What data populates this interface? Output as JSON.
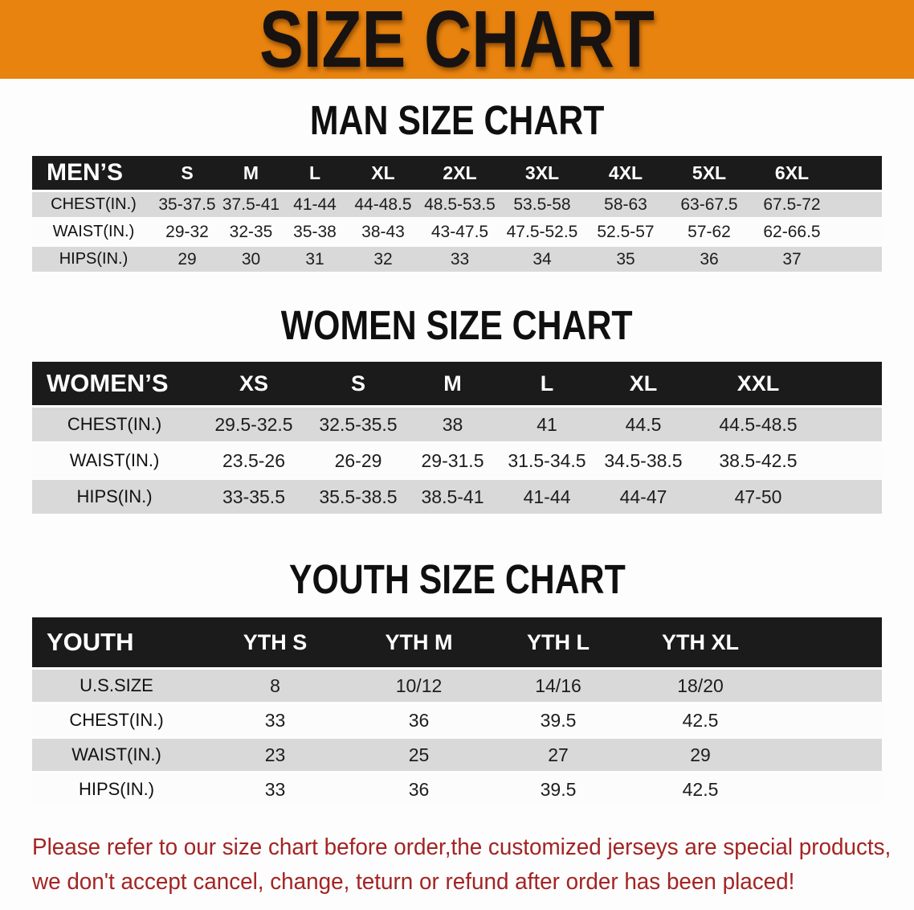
{
  "banner": {
    "title": "SIZE CHART",
    "background": "#E8830F"
  },
  "theme": {
    "header_bar_black": "#1B1B1B",
    "stripe_gray": "#D9D9D9",
    "accent_red": "#A32423"
  },
  "sections": [
    {
      "id": "men",
      "heading": "MAN SIZE CHART",
      "table": {
        "corner_label": "MEN’S",
        "columns": [
          "S",
          "M",
          "L",
          "XL",
          "2XL",
          "3XL",
          "4XL",
          "5XL",
          "6XL"
        ],
        "rows": [
          {
            "label": "CHEST(IN.)",
            "values": [
              "35-37.5",
              "37.5-41",
              "41-44",
              "44-48.5",
              "48.5-53.5",
              "53.5-58",
              "58-63",
              "63-67.5",
              "67.5-72"
            ]
          },
          {
            "label": "WAIST(IN.)",
            "values": [
              "29-32",
              "32-35",
              "35-38",
              "38-43",
              "43-47.5",
              "47.5-52.5",
              "52.5-57",
              "57-62",
              "62-66.5"
            ]
          },
          {
            "label": "HIPS(IN.)",
            "values": [
              "29",
              "30",
              "31",
              "32",
              "33",
              "34",
              "35",
              "36",
              "37"
            ]
          }
        ]
      }
    },
    {
      "id": "women",
      "heading": "WOMEN SIZE CHART",
      "table": {
        "corner_label": "WOMEN’S",
        "columns": [
          "XS",
          "S",
          "M",
          "L",
          "XL",
          "XXL"
        ],
        "rows": [
          {
            "label": "CHEST(IN.)",
            "values": [
              "29.5-32.5",
              "32.5-35.5",
              "38",
              "41",
              "44.5",
              "44.5-48.5"
            ]
          },
          {
            "label": "WAIST(IN.)",
            "values": [
              "23.5-26",
              "26-29",
              "29-31.5",
              "31.5-34.5",
              "34.5-38.5",
              "38.5-42.5"
            ]
          },
          {
            "label": "HIPS(IN.)",
            "values": [
              "33-35.5",
              "35.5-38.5",
              "38.5-41",
              "41-44",
              "44-47",
              "47-50"
            ]
          }
        ]
      }
    },
    {
      "id": "youth",
      "heading": "YOUTH SIZE CHART",
      "table": {
        "corner_label": "YOUTH",
        "columns": [
          "YTH S",
          "YTH M",
          "YTH L",
          "YTH XL"
        ],
        "rows": [
          {
            "label": "U.S.SIZE",
            "values": [
              "8",
              "10/12",
              "14/16",
              "18/20"
            ]
          },
          {
            "label": "CHEST(IN.)",
            "values": [
              "33",
              "36",
              "39.5",
              "42.5"
            ]
          },
          {
            "label": "WAIST(IN.)",
            "values": [
              "23",
              "25",
              "27",
              "29"
            ]
          },
          {
            "label": "HIPS(IN.)",
            "values": [
              "33",
              "36",
              "39.5",
              "42.5"
            ]
          }
        ]
      }
    }
  ],
  "disclaimer": {
    "line1": "Please refer to our size chart before order,the customized jerseys are special products,",
    "line2": "we don't accept cancel, change, teturn or refund after order has been placed!",
    "color": "#A32423"
  }
}
